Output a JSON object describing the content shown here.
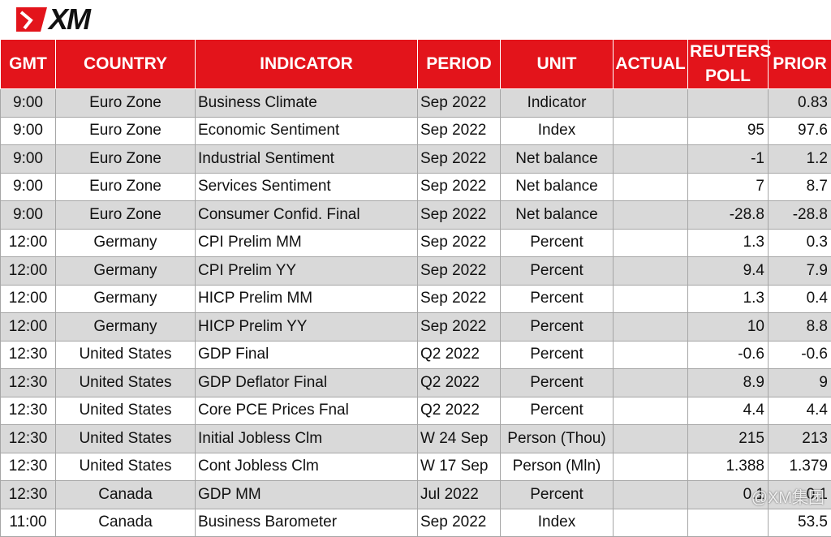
{
  "header": {
    "logo": "XM"
  },
  "table": {
    "columns": [
      "GMT",
      "COUNTRY",
      "INDICATOR",
      "PERIOD",
      "UNIT",
      "ACTUAL",
      "REUTERS POLL",
      "PRIOR"
    ],
    "rows": [
      [
        "9:00",
        "Euro Zone",
        "Business Climate",
        "Sep 2022",
        "Indicator",
        null,
        null,
        "0.83"
      ],
      [
        "9:00",
        "Euro Zone",
        "Economic Sentiment",
        "Sep 2022",
        "Index",
        null,
        "95",
        "97.6"
      ],
      [
        "9:00",
        "Euro Zone",
        "Industrial Sentiment",
        "Sep 2022",
        "Net balance",
        null,
        "-1",
        "1.2"
      ],
      [
        "9:00",
        "Euro Zone",
        "Services Sentiment",
        "Sep 2022",
        "Net balance",
        null,
        "7",
        "8.7"
      ],
      [
        "9:00",
        "Euro Zone",
        "Consumer Confid. Final",
        "Sep 2022",
        "Net balance",
        null,
        "-28.8",
        "-28.8"
      ],
      [
        "12:00",
        "Germany",
        "CPI Prelim MM",
        "Sep 2022",
        "Percent",
        null,
        "1.3",
        "0.3"
      ],
      [
        "12:00",
        "Germany",
        "CPI Prelim YY",
        "Sep 2022",
        "Percent",
        null,
        "9.4",
        "7.9"
      ],
      [
        "12:00",
        "Germany",
        "HICP Prelim MM",
        "Sep 2022",
        "Percent",
        null,
        "1.3",
        "0.4"
      ],
      [
        "12:00",
        "Germany",
        "HICP Prelim YY",
        "Sep 2022",
        "Percent",
        null,
        "10",
        "8.8"
      ],
      [
        "12:30",
        "United States",
        "GDP Final",
        "Q2 2022",
        "Percent",
        null,
        "-0.6",
        "-0.6"
      ],
      [
        "12:30",
        "United States",
        "GDP Deflator Final",
        "Q2 2022",
        "Percent",
        null,
        "8.9",
        "9"
      ],
      [
        "12:30",
        "United States",
        "Core PCE Prices Fnal",
        "Q2 2022",
        "Percent",
        null,
        "4.4",
        "4.4"
      ],
      [
        "12:30",
        "United States",
        "Initial Jobless Clm",
        "W 24 Sep",
        "Person (Thou)",
        null,
        "215",
        "213"
      ],
      [
        "12:30",
        "United States",
        "Cont Jobless Clm",
        "W 17 Sep",
        "Person (Mln)",
        null,
        "1.388",
        "1.379"
      ],
      [
        "12:30",
        "Canada",
        "GDP MM",
        "Jul 2022",
        "Percent",
        null,
        "0.1",
        "0.1"
      ],
      [
        "11:00",
        "Canada",
        "Business Barometer",
        "Sep 2022",
        "Index",
        null,
        null,
        "53.5"
      ]
    ]
  },
  "watermark": "@XM集团"
}
